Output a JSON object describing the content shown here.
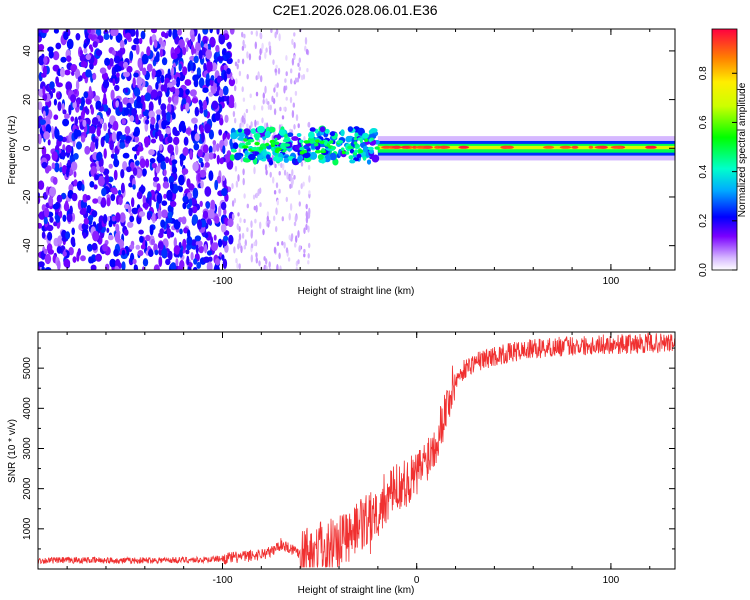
{
  "title": "C2E1.2026.028.06.01.E36",
  "chart_data": [
    {
      "type": "heatmap",
      "title": "C2E1.2026.028.06.01.E36",
      "xlabel": "Height of straight line (km)",
      "ylabel": "Frequency (Hz)",
      "xlim": [
        -195,
        133
      ],
      "ylim": [
        -50,
        49
      ],
      "xticks": [
        -100,
        100
      ],
      "yticks": [
        -40,
        -20,
        0,
        20,
        40
      ],
      "grid": false,
      "colorbar": {
        "label": "Normalized spectral amplitude",
        "range": [
          0,
          0.98
        ],
        "ticks": [
          0.0,
          0.2,
          0.4,
          0.6,
          0.8
        ],
        "tick_labels": [
          "0.0",
          "0.2",
          "0.4",
          "0.6",
          "0.8"
        ],
        "colormap": "rainbow"
      },
      "regions": [
        {
          "name": "noise",
          "x_range": [
            -195,
            -95
          ],
          "freq_range": [
            -50,
            49
          ],
          "amplitude": 0.22
        },
        {
          "name": "sparse",
          "x_range": [
            -95,
            -55
          ],
          "freq_range": [
            -50,
            49
          ],
          "amplitude": 0.05
        },
        {
          "name": "onset",
          "x_range": [
            -95,
            -20
          ],
          "freq_range": [
            -6,
            8
          ],
          "amplitude": 0.45
        },
        {
          "name": "carrier",
          "x_range": [
            -20,
            133
          ],
          "freq_range": [
            -3,
            3
          ],
          "amplitude": 0.9
        }
      ]
    },
    {
      "type": "line",
      "xlabel": "Height of straight line (km)",
      "ylabel": "SNR (10 * v/v)",
      "xlim": [
        -195,
        133
      ],
      "ylim": [
        0,
        5900
      ],
      "xticks": [
        -100,
        0,
        100
      ],
      "yticks": [
        1000,
        2000,
        3000,
        4000,
        5000
      ],
      "grid": false,
      "series": [
        {
          "name": "SNR",
          "color": "#f03030",
          "x": [
            -195,
            -170,
            -150,
            -130,
            -110,
            -95,
            -85,
            -75,
            -70,
            -65,
            -60,
            -50,
            -40,
            -30,
            -25,
            -20,
            -15,
            -10,
            -5,
            0,
            5,
            10,
            15,
            20,
            25,
            30,
            40,
            50,
            60,
            70,
            80,
            90,
            100,
            110,
            120,
            133
          ],
          "values": [
            210,
            220,
            210,
            220,
            230,
            280,
            330,
            420,
            620,
            520,
            400,
            550,
            750,
            1000,
            1200,
            1500,
            1800,
            2050,
            2150,
            2350,
            2750,
            3200,
            4000,
            4700,
            5000,
            5150,
            5300,
            5400,
            5480,
            5520,
            5560,
            5580,
            5600,
            5600,
            5620,
            5620
          ]
        }
      ]
    }
  ],
  "colors": {
    "line": "#f03030",
    "axis": "#000000"
  }
}
